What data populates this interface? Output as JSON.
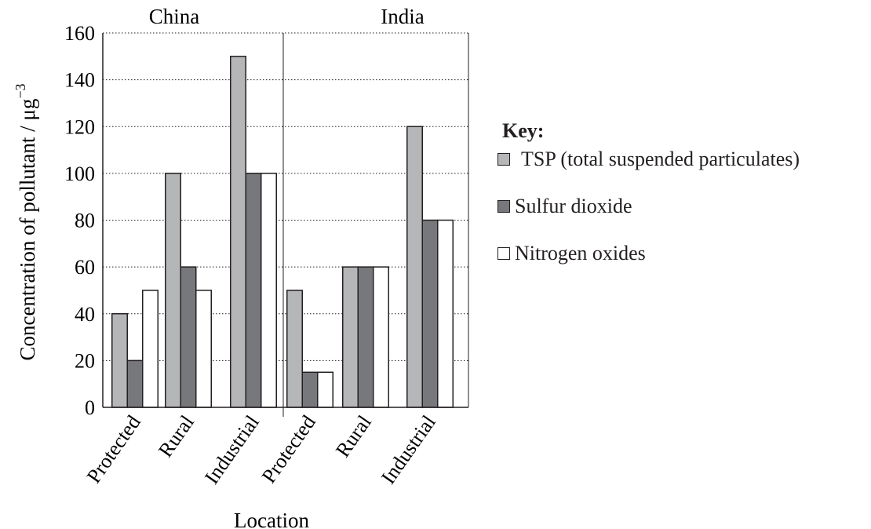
{
  "chart_data": {
    "type": "bar",
    "ylabel": "Concentration of pollutant / μg",
    "ylabel_sup": "−3",
    "xlabel": "Location",
    "ylim": [
      0,
      160
    ],
    "yticks": [
      0,
      20,
      40,
      60,
      80,
      100,
      120,
      140,
      160
    ],
    "grid": true,
    "legend_placement": "right",
    "legend_title": "Key:",
    "groups": [
      {
        "name": "China",
        "categories": [
          "Protected",
          "Rural",
          "Industrial"
        ]
      },
      {
        "name": "India",
        "categories": [
          "Protected",
          "Rural",
          "Industrial"
        ]
      }
    ],
    "series": [
      {
        "name": "TSP (total suspended particulates)",
        "color": "#b5b6b8",
        "values": [
          40,
          100,
          150,
          50,
          60,
          120
        ]
      },
      {
        "name": "Sulfur dioxide",
        "color": "#77787b",
        "values": [
          20,
          60,
          100,
          15,
          60,
          80
        ]
      },
      {
        "name": "Nitrogen oxides",
        "color": "#ffffff",
        "values": [
          50,
          50,
          100,
          15,
          60,
          80
        ]
      }
    ]
  }
}
